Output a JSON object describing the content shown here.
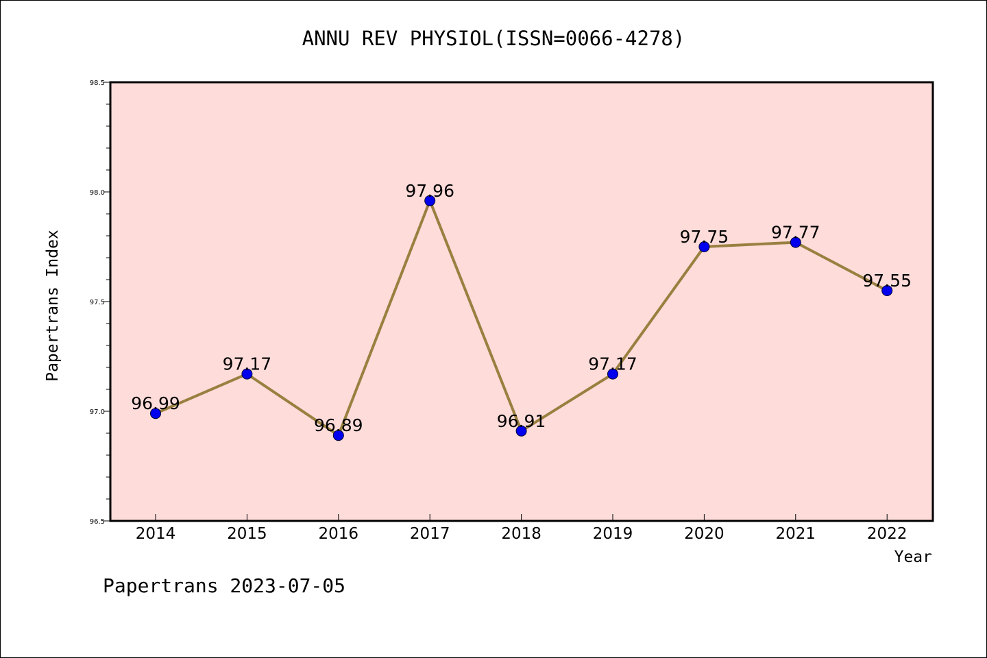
{
  "chart_data": {
    "type": "line",
    "title": "ANNU REV PHYSIOL(ISSN=0066-4278)",
    "xlabel": "Year",
    "ylabel": "Papertrans Index",
    "categories": [
      "2014",
      "2015",
      "2016",
      "2017",
      "2018",
      "2019",
      "2020",
      "2021",
      "2022"
    ],
    "values": [
      96.99,
      97.17,
      96.89,
      97.96,
      96.91,
      97.17,
      97.75,
      97.77,
      97.55
    ],
    "data_labels": [
      "96.99",
      "97.17",
      "96.89",
      "97.96",
      "96.91",
      "97.17",
      "97.75",
      "97.77",
      "97.55"
    ],
    "ylim": [
      96.5,
      98.5
    ],
    "yticks": [
      "96.5",
      "97.0",
      "97.5",
      "98.0",
      "98.5"
    ],
    "grid": false,
    "legend": "none",
    "colors": {
      "plot_background": "#fddcda",
      "line": "#9a8040",
      "marker": "#0000ee"
    }
  },
  "footer": "Papertrans 2023-07-05"
}
